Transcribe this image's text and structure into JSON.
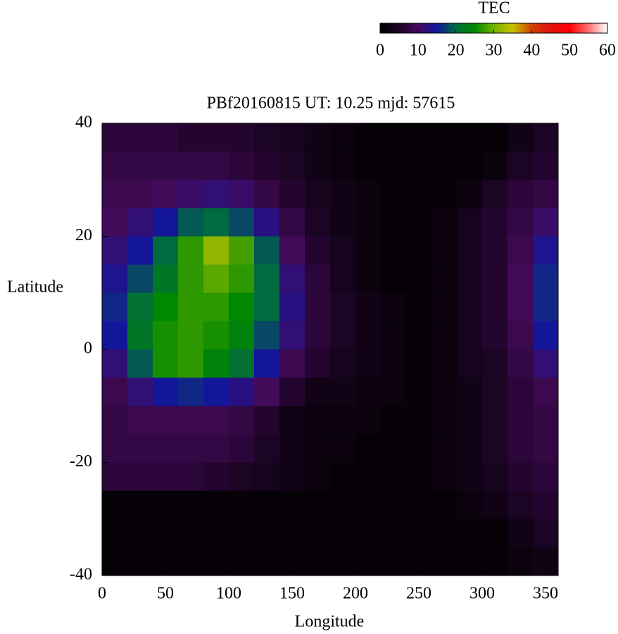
{
  "chart_data": {
    "type": "heatmap",
    "title": "PBf20160815  UT: 10.25  mjd: 57615",
    "x_label": "Longitude",
    "y_label": "Latitude",
    "colorbar_label": "TEC",
    "x": [
      10,
      30,
      50,
      70,
      90,
      110,
      130,
      150,
      170,
      190,
      210,
      230,
      250,
      270,
      290,
      310,
      330,
      350
    ],
    "y": [
      37.5,
      32.5,
      27.5,
      22.5,
      17.5,
      12.5,
      7.5,
      2.5,
      -2.5,
      -7.5,
      -12.5,
      -17.5,
      -22.5,
      -27.5,
      -32.5,
      -37.5
    ],
    "z": [
      [
        7,
        7,
        7,
        6,
        6,
        6,
        5,
        4,
        3,
        2,
        1,
        1,
        1,
        1,
        1,
        1,
        3,
        5
      ],
      [
        8,
        8,
        8,
        8,
        8,
        7,
        6,
        5,
        3,
        2,
        1,
        1,
        1,
        1,
        1,
        2,
        5,
        6
      ],
      [
        9,
        9,
        10,
        11,
        12,
        11,
        8,
        6,
        4,
        3,
        2,
        1,
        1,
        1,
        2,
        5,
        7,
        8
      ],
      [
        10,
        12,
        15,
        19,
        20,
        18,
        13,
        8,
        5,
        3,
        2,
        1,
        1,
        2,
        4,
        6,
        8,
        11
      ],
      [
        12,
        15,
        20,
        27,
        32,
        28,
        19,
        10,
        6,
        4,
        2,
        1,
        1,
        2,
        4,
        6,
        9,
        14
      ],
      [
        14,
        18,
        22,
        27,
        29,
        27,
        20,
        12,
        7,
        4,
        2,
        1,
        1,
        2,
        4,
        6,
        10,
        16
      ],
      [
        16,
        21,
        25,
        27,
        27,
        25,
        20,
        13,
        7,
        5,
        3,
        2,
        1,
        2,
        4,
        6,
        10,
        16
      ],
      [
        15,
        22,
        26,
        27,
        26,
        24,
        18,
        12,
        7,
        5,
        3,
        2,
        1,
        2,
        4,
        6,
        9,
        15
      ],
      [
        12,
        19,
        26,
        27,
        24,
        21,
        15,
        9,
        6,
        4,
        3,
        2,
        1,
        2,
        4,
        5,
        8,
        12
      ],
      [
        9,
        12,
        15,
        16,
        15,
        13,
        10,
        6,
        3,
        3,
        2,
        2,
        1,
        2,
        3,
        5,
        7,
        9
      ],
      [
        8,
        9,
        9,
        9,
        9,
        8,
        6,
        3,
        2,
        2,
        2,
        1,
        1,
        2,
        3,
        5,
        7,
        8
      ],
      [
        8,
        8,
        8,
        8,
        8,
        7,
        5,
        3,
        2,
        2,
        1,
        1,
        1,
        2,
        3,
        5,
        7,
        8
      ],
      [
        7,
        7,
        7,
        7,
        6,
        5,
        4,
        3,
        2,
        1,
        1,
        1,
        1,
        2,
        3,
        4,
        6,
        7
      ],
      [
        1,
        1,
        1,
        1,
        1,
        1,
        1,
        1,
        1,
        1,
        1,
        1,
        1,
        1,
        2,
        3,
        5,
        6
      ],
      [
        1,
        1,
        1,
        1,
        1,
        1,
        1,
        1,
        1,
        1,
        1,
        1,
        1,
        1,
        1,
        1,
        3,
        5
      ],
      [
        1,
        1,
        1,
        1,
        1,
        1,
        1,
        1,
        1,
        1,
        1,
        1,
        1,
        1,
        1,
        1,
        2,
        3
      ]
    ],
    "xlim": [
      0,
      360
    ],
    "xticks": [
      0,
      50,
      100,
      150,
      200,
      250,
      300,
      350
    ],
    "ylim": [
      -40,
      40
    ],
    "yticks": [
      -40,
      -20,
      0,
      20,
      40
    ],
    "zlim": [
      0,
      60
    ],
    "zticks": [
      0,
      10,
      20,
      30,
      40,
      50,
      60
    ],
    "colormap": [
      "#000000",
      "#1c0424",
      "#440a5a",
      "#14169a",
      "#006a40",
      "#008800",
      "#70b000",
      "#c8c000",
      "#d04000",
      "#e01010",
      "#ff0000",
      "#ff7070",
      "#ffffff"
    ]
  }
}
